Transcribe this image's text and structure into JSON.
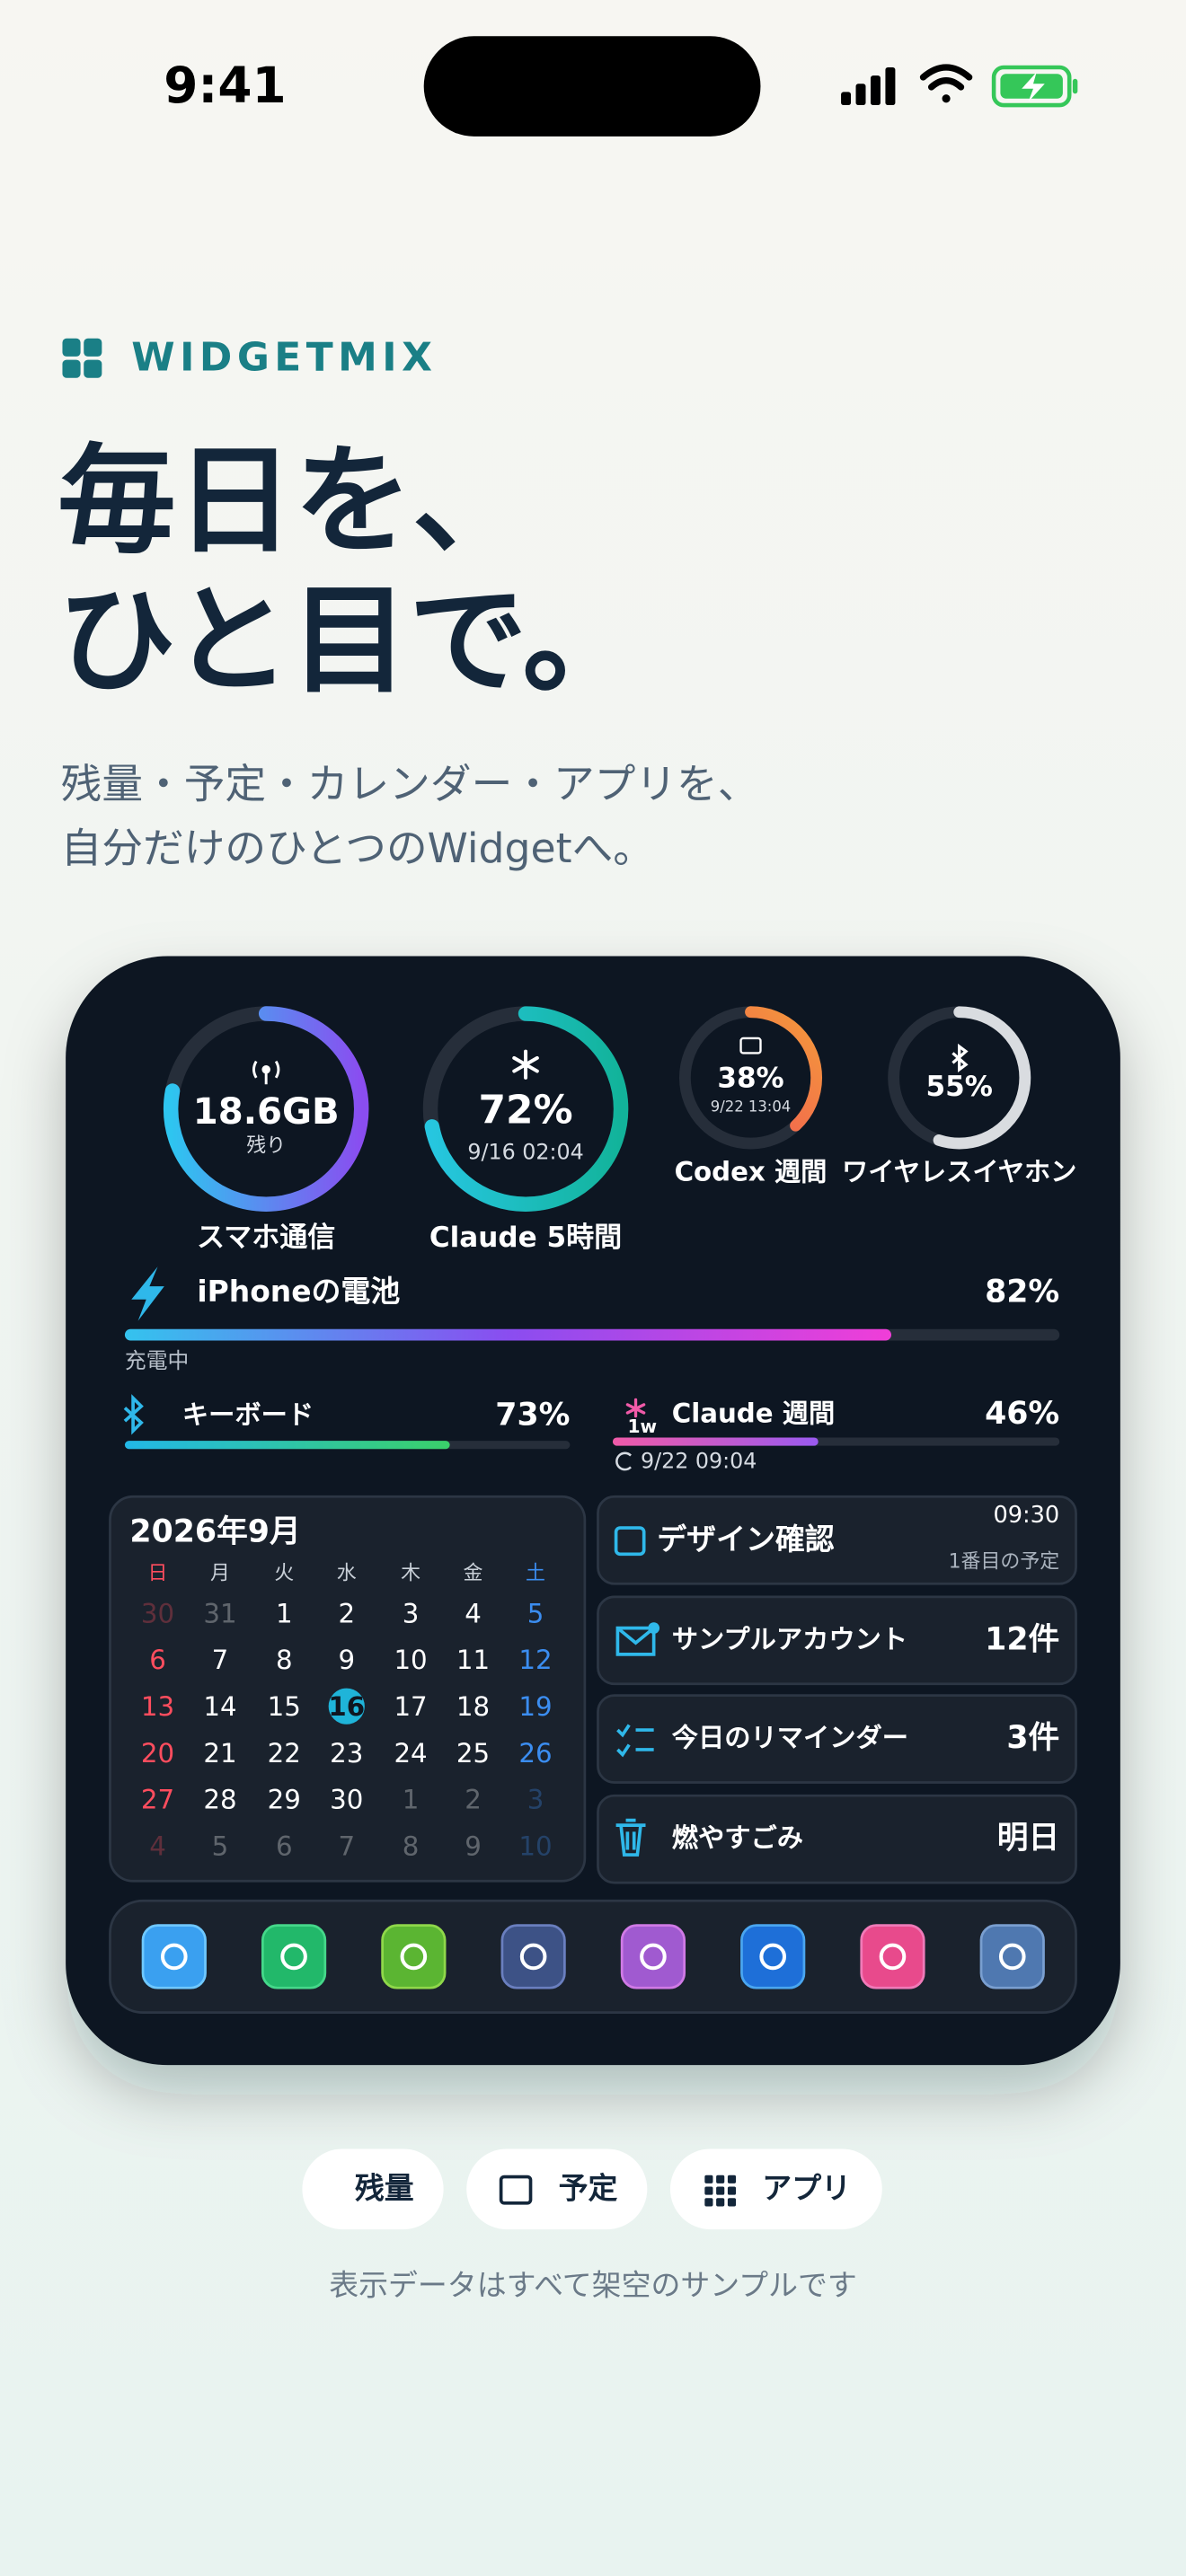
{
  "status_bar": {
    "time": "9:41"
  },
  "header": {
    "brand": "WIDGETMIX",
    "title_lines": [
      "毎日を、",
      "ひと目で。"
    ],
    "subtitle_lines": [
      "残量・予定・カレンダー・アプリを、",
      "自分だけのひとつのWidgetへ。"
    ]
  },
  "widget": {
    "rings": [
      {
        "value_text": "18.6GB",
        "sub": "残り",
        "label": "スマホ通信"
      },
      {
        "percent": {
          "value": 72,
          "label": "72%"
        },
        "sub": "9/16 02:04",
        "label": "Claude 5時間"
      },
      {
        "percent": {
          "value": 38,
          "label": "38%"
        },
        "sub": "9/22 13:04",
        "label": "Codex 週間"
      },
      {
        "percent": {
          "value": 55,
          "label": "55%"
        },
        "label": "ワイヤレスイヤホン"
      }
    ],
    "bars": [
      {
        "label": "iPhoneの電池",
        "percent": {
          "value": 82,
          "label": "82%"
        },
        "note": "充電中"
      },
      {
        "label": "キーボード",
        "percent": {
          "value": 73,
          "label": "73%"
        }
      },
      {
        "label": "Claude 週間",
        "badge": "1w",
        "percent": {
          "value": 46,
          "label": "46%"
        },
        "note": "9/22 09:04"
      }
    ],
    "calendar": {
      "title": "2026年9月",
      "weekdays": [
        "日",
        "月",
        "火",
        "水",
        "木",
        "金",
        "土"
      ],
      "today": 16,
      "weeks": [
        [
          30,
          31,
          1,
          2,
          3,
          4,
          5
        ],
        [
          6,
          7,
          8,
          9,
          10,
          11,
          12
        ],
        [
          13,
          14,
          15,
          16,
          17,
          18,
          19
        ],
        [
          20,
          21,
          22,
          23,
          24,
          25,
          26
        ],
        [
          27,
          28,
          29,
          30,
          1,
          2,
          3
        ],
        [
          4,
          5,
          6,
          7,
          8,
          9,
          10
        ]
      ]
    },
    "items": [
      {
        "title": "デザイン確認",
        "time": "09:30",
        "note": "1番目の予定"
      },
      {
        "title": "サンプルアカウント",
        "count": "12件"
      },
      {
        "title": "今日のリマインダー",
        "count": "3件"
      },
      {
        "title": "燃やすごみ",
        "count": "明日"
      }
    ]
  },
  "tabs": [
    "残量",
    "予定",
    "アプリ"
  ],
  "footer": "表示データはすべて架空のサンプルです"
}
